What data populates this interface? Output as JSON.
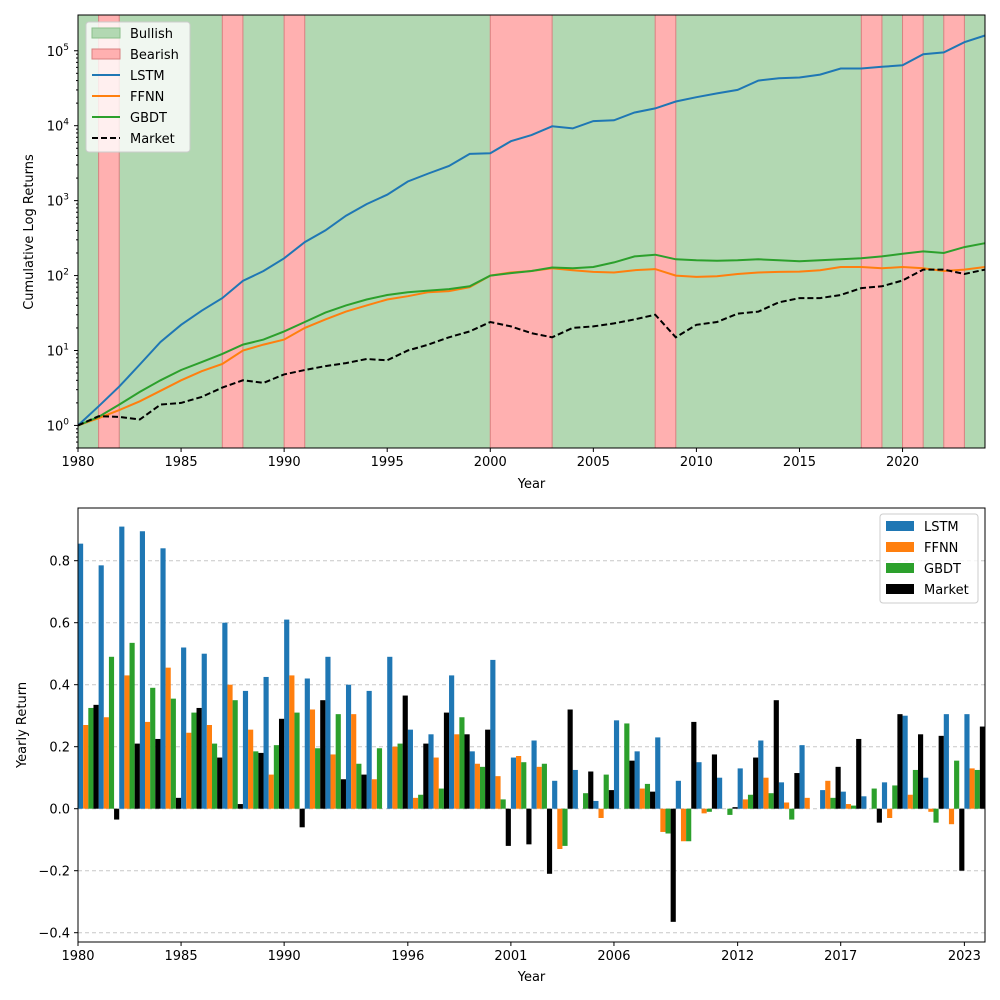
{
  "chart_data": [
    {
      "type": "line",
      "xlabel": "Year",
      "ylabel": "Cumulative Log Returns",
      "y_scale": "log",
      "xlim": [
        1980,
        2024
      ],
      "ylim": [
        0.5,
        300000
      ],
      "x_ticks": [
        "1980",
        "1985",
        "1990",
        "1995",
        "2000",
        "2005",
        "2010",
        "2015",
        "2020"
      ],
      "y_ticks": [
        {
          "value": 1,
          "base": "10",
          "exp": "0"
        },
        {
          "value": 10,
          "base": "10",
          "exp": "1"
        },
        {
          "value": 100,
          "base": "10",
          "exp": "2"
        },
        {
          "value": 1000,
          "base": "10",
          "exp": "3"
        },
        {
          "value": 10000,
          "base": "10",
          "exp": "4"
        },
        {
          "value": 100000,
          "base": "10",
          "exp": "5"
        }
      ],
      "legend_position": "top-left",
      "regimes": {
        "Bullish": [
          [
            1980,
            1981
          ],
          [
            1982,
            1987
          ],
          [
            1988,
            1990
          ],
          [
            1991,
            2000
          ],
          [
            2003,
            2008
          ],
          [
            2009,
            2018
          ],
          [
            2019,
            2020
          ],
          [
            2021,
            2022
          ],
          [
            2023,
            2024
          ]
        ],
        "Bearish": [
          [
            1981,
            1982
          ],
          [
            1987,
            1988
          ],
          [
            1990,
            1991
          ],
          [
            2000,
            2003
          ],
          [
            2008,
            2009
          ],
          [
            2018,
            2019
          ],
          [
            2020,
            2021
          ],
          [
            2022,
            2023
          ]
        ]
      },
      "legend": [
        "Bullish",
        "Bearish",
        "LSTM",
        "FFNN",
        "GBDT",
        "Market"
      ],
      "colors": {
        "Bullish": "#b2d8b2",
        "Bearish": "#ffb0b0",
        "LSTM": "#1f77b4",
        "FFNN": "#ff7f0e",
        "GBDT": "#2ca02c",
        "Market": "#000000"
      },
      "series": [
        {
          "name": "LSTM",
          "style": "solid",
          "x": [
            1980,
            1981,
            1982,
            1983,
            1984,
            1985,
            1986,
            1987,
            1988,
            1989,
            1990,
            1991,
            1992,
            1993,
            1994,
            1995,
            1996,
            1997,
            1998,
            1999,
            2000,
            2001,
            2002,
            2003,
            2004,
            2005,
            2006,
            2007,
            2008,
            2009,
            2010,
            2011,
            2012,
            2013,
            2014,
            2015,
            2016,
            2017,
            2018,
            2019,
            2020,
            2021,
            2022,
            2023,
            2024
          ],
          "y": [
            1,
            1.8,
            3.3,
            6.5,
            13,
            22,
            34,
            50,
            85,
            115,
            170,
            280,
            400,
            630,
            900,
            1200,
            1800,
            2300,
            2900,
            4200,
            4300,
            6200,
            7500,
            9800,
            9200,
            11500,
            11800,
            15000,
            17000,
            21000,
            24000,
            27000,
            30000,
            40000,
            43000,
            44000,
            48000,
            58000,
            58000,
            61000,
            64000,
            90000,
            95000,
            130000,
            160000
          ]
        },
        {
          "name": "FFNN",
          "style": "solid",
          "x": [
            1980,
            1981,
            1982,
            1983,
            1984,
            1985,
            1986,
            1987,
            1988,
            1989,
            1990,
            1991,
            1992,
            1993,
            1994,
            1995,
            1996,
            1997,
            1998,
            1999,
            2000,
            2001,
            2002,
            2003,
            2004,
            2005,
            2006,
            2007,
            2008,
            2009,
            2010,
            2011,
            2012,
            2013,
            2014,
            2015,
            2016,
            2017,
            2018,
            2019,
            2020,
            2021,
            2022,
            2023,
            2024
          ],
          "y": [
            1,
            1.25,
            1.6,
            2.1,
            2.9,
            4,
            5.3,
            6.6,
            10,
            12,
            14,
            20,
            26,
            33,
            40,
            48,
            53,
            60,
            62,
            70,
            100,
            110,
            115,
            125,
            118,
            112,
            110,
            118,
            122,
            100,
            96,
            98,
            105,
            110,
            112,
            113,
            118,
            130,
            130,
            125,
            130,
            125,
            115,
            120,
            130
          ]
        },
        {
          "name": "GBDT",
          "style": "solid",
          "x": [
            1980,
            1981,
            1982,
            1983,
            1984,
            1985,
            1986,
            1987,
            1988,
            1989,
            1990,
            1991,
            1992,
            1993,
            1994,
            1995,
            1996,
            1997,
            1998,
            1999,
            2000,
            2001,
            2002,
            2003,
            2004,
            2005,
            2006,
            2007,
            2008,
            2009,
            2010,
            2011,
            2012,
            2013,
            2014,
            2015,
            2016,
            2017,
            2018,
            2019,
            2020,
            2021,
            2022,
            2023,
            2024
          ],
          "y": [
            1,
            1.3,
            1.9,
            2.8,
            4,
            5.5,
            7,
            9,
            12,
            14,
            18,
            24,
            32,
            40,
            48,
            55,
            60,
            63,
            66,
            72,
            100,
            108,
            115,
            128,
            125,
            130,
            150,
            180,
            190,
            165,
            160,
            158,
            160,
            165,
            160,
            155,
            160,
            165,
            170,
            180,
            195,
            210,
            200,
            240,
            270
          ]
        },
        {
          "name": "Market",
          "style": "dashed",
          "x": [
            1980,
            1981,
            1982,
            1983,
            1984,
            1985,
            1986,
            1987,
            1988,
            1989,
            1990,
            1991,
            1992,
            1993,
            1994,
            1995,
            1996,
            1997,
            1998,
            1999,
            2000,
            2001,
            2002,
            2003,
            2004,
            2005,
            2006,
            2007,
            2008,
            2009,
            2010,
            2011,
            2012,
            2013,
            2014,
            2015,
            2016,
            2017,
            2018,
            2019,
            2020,
            2021,
            2022,
            2023,
            2024
          ],
          "y": [
            1,
            1.33,
            1.3,
            1.2,
            1.9,
            2,
            2.4,
            3.2,
            4,
            3.7,
            4.8,
            5.5,
            6.2,
            6.8,
            7.7,
            7.4,
            10,
            12,
            15,
            18,
            24,
            21,
            17,
            15,
            20,
            21,
            23,
            26,
            30,
            15,
            22,
            24,
            31,
            33,
            44,
            50,
            50,
            55,
            68,
            72,
            86,
            120,
            120,
            105,
            120
          ]
        }
      ]
    },
    {
      "type": "bar",
      "xlabel": "Year",
      "ylabel": "Yearly Return",
      "ylim": [
        -0.43,
        0.97
      ],
      "y_ticks": [
        "−0.4",
        "−0.2",
        "0.0",
        "0.2",
        "0.4",
        "0.6",
        "0.8"
      ],
      "y_tick_values": [
        -0.4,
        -0.2,
        0.0,
        0.2,
        0.4,
        0.6,
        0.8
      ],
      "x_tick_labels": [
        "1980",
        "1985",
        "1990",
        "1996",
        "2001",
        "2006",
        "2012",
        "2017",
        "2023"
      ],
      "x_tick_year_index": [
        0,
        5,
        10,
        16,
        21,
        26,
        32,
        37,
        43
      ],
      "grid": "y-dashed",
      "legend_position": "top-right",
      "colors": {
        "LSTM": "#1f77b4",
        "FFNN": "#ff7f0e",
        "GBDT": "#2ca02c",
        "Market": "#000000"
      },
      "categories": [
        1980,
        1981,
        1982,
        1983,
        1984,
        1985,
        1986,
        1987,
        1988,
        1989,
        1990,
        1991,
        1992,
        1993,
        1994,
        1995,
        1996,
        1997,
        1998,
        1999,
        2000,
        2001,
        2002,
        2003,
        2004,
        2005,
        2006,
        2007,
        2008,
        2009,
        2010,
        2011,
        2012,
        2013,
        2014,
        2015,
        2016,
        2017,
        2018,
        2019,
        2020,
        2021,
        2022,
        2023
      ],
      "series": [
        {
          "name": "LSTM",
          "values": [
            0.855,
            0.785,
            0.91,
            0.895,
            0.84,
            0.52,
            0.5,
            0.6,
            0.38,
            0.425,
            0.61,
            0.42,
            0.49,
            0.4,
            0.38,
            0.49,
            0.255,
            0.24,
            0.43,
            0.185,
            0.48,
            0.165,
            0.22,
            0.09,
            0.125,
            0.025,
            0.285,
            0.185,
            0.23,
            0.09,
            0.15,
            0.1,
            0.13,
            0.22,
            0.085,
            0.205,
            0.06,
            0.055,
            0.04,
            0.085,
            0.3,
            0.1,
            0.305,
            0.305
          ]
        },
        {
          "name": "FFNN",
          "values": [
            0.27,
            0.295,
            0.43,
            0.28,
            0.455,
            0.245,
            0.27,
            0.4,
            0.255,
            0.11,
            0.43,
            0.32,
            0.175,
            0.305,
            0.095,
            0.2,
            0.035,
            0.165,
            0.24,
            0.145,
            0.105,
            0.17,
            0.135,
            -0.13,
            0.0,
            -0.03,
            0.0,
            0.065,
            -0.075,
            -0.105,
            -0.015,
            0.0,
            0.03,
            0.1,
            0.02,
            0.035,
            0.09,
            0.015,
            0.0,
            -0.03,
            0.045,
            -0.01,
            -0.05,
            0.13
          ]
        },
        {
          "name": "GBDT",
          "values": [
            0.325,
            0.49,
            0.535,
            0.39,
            0.355,
            0.31,
            0.21,
            0.35,
            0.185,
            0.205,
            0.31,
            0.195,
            0.305,
            0.145,
            0.195,
            0.21,
            0.045,
            0.065,
            0.295,
            0.135,
            0.03,
            0.15,
            0.145,
            -0.12,
            0.05,
            0.11,
            0.275,
            0.08,
            -0.08,
            -0.105,
            -0.01,
            -0.02,
            0.045,
            0.05,
            -0.035,
            0.0,
            0.035,
            0.01,
            0.065,
            0.075,
            0.125,
            -0.045,
            0.155,
            0.125
          ]
        },
        {
          "name": "Market",
          "values": [
            0.335,
            -0.035,
            0.21,
            0.225,
            0.035,
            0.325,
            0.165,
            0.015,
            0.18,
            0.29,
            -0.06,
            0.35,
            0.095,
            0.11,
            0.0,
            0.365,
            0.21,
            0.31,
            0.24,
            0.255,
            -0.12,
            -0.115,
            -0.21,
            0.32,
            0.12,
            0.06,
            0.155,
            0.055,
            -0.365,
            0.28,
            0.175,
            0.005,
            0.165,
            0.35,
            0.115,
            0.0,
            0.135,
            0.225,
            -0.045,
            0.305,
            0.24,
            0.235,
            -0.2,
            0.265
          ]
        }
      ]
    }
  ]
}
